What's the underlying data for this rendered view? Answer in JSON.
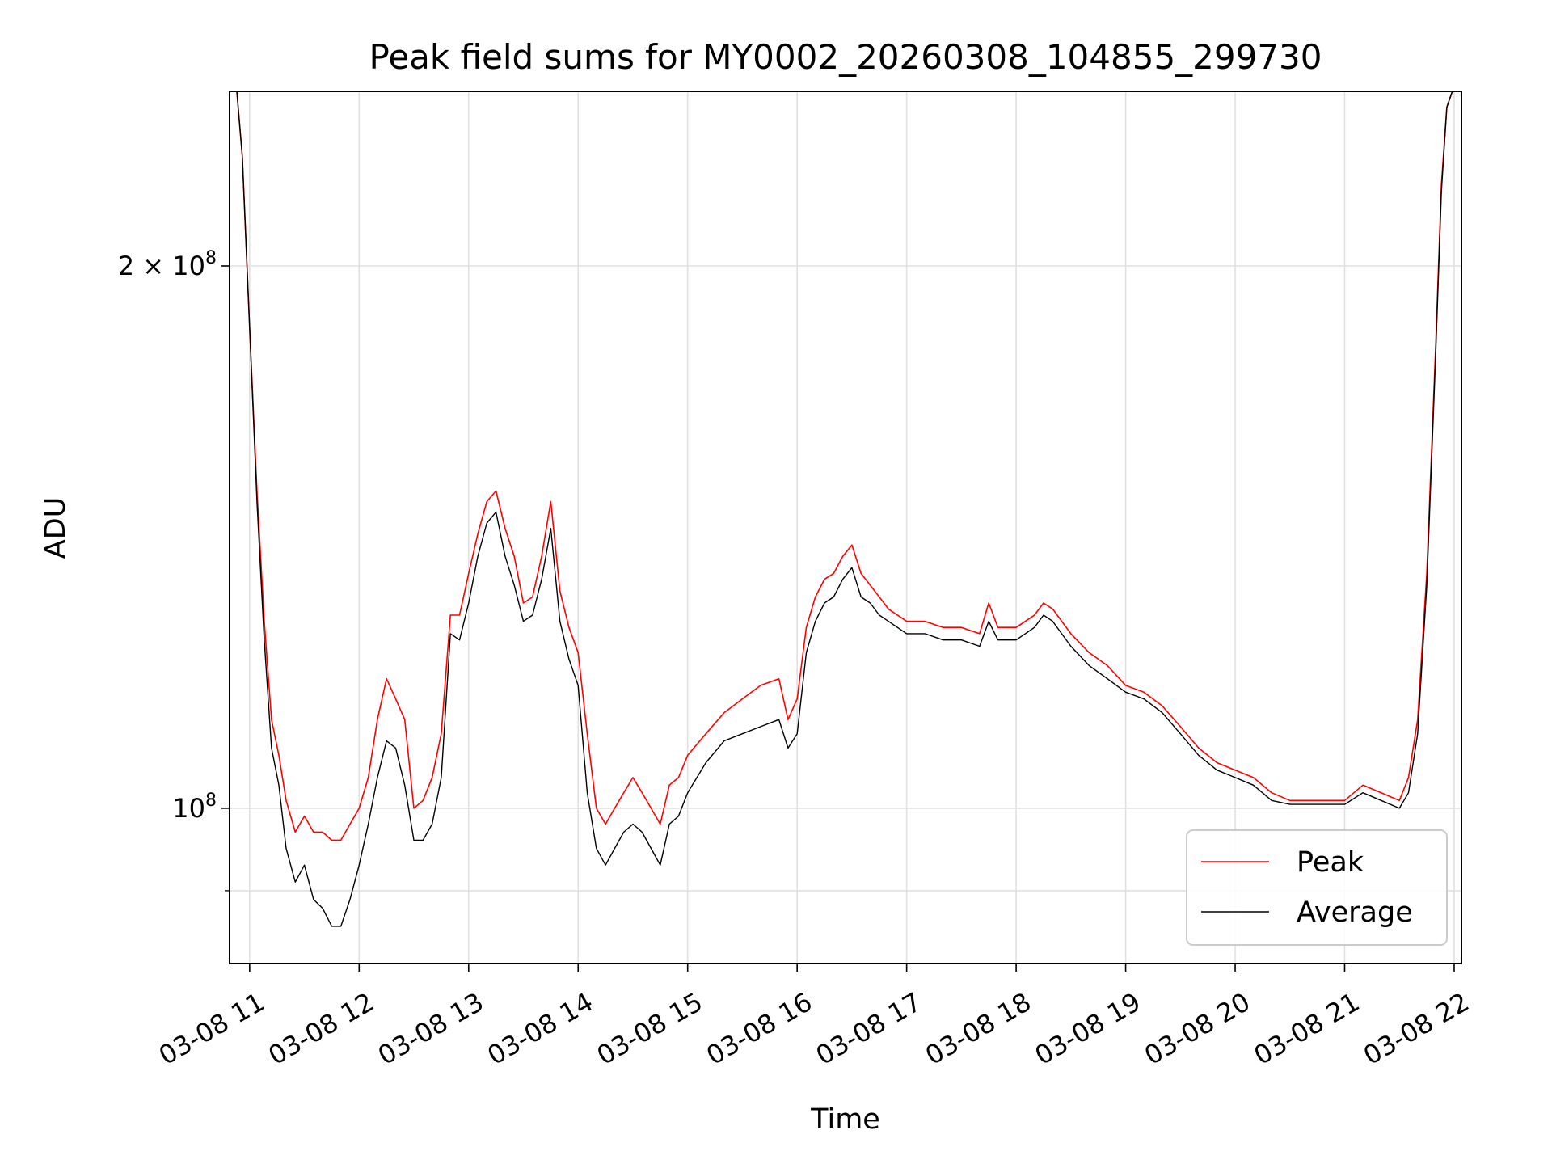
{
  "chart_data": {
    "type": "line",
    "title": "Peak field sums for MY0002_20260308_104855_299730",
    "xlabel": "Time",
    "ylabel": "ADU",
    "yscale": "log",
    "ylim": [
      82000000,
      250000000
    ],
    "xlim": [
      "2026-03-08 10:49",
      "2026-03-08 22:04"
    ],
    "grid": true,
    "legend_position": "lower-right",
    "x_tick_labels": [
      "03-08 11",
      "03-08 12",
      "03-08 13",
      "03-08 14",
      "03-08 15",
      "03-08 16",
      "03-08 17",
      "03-08 18",
      "03-08 19",
      "03-08 20",
      "03-08 21",
      "03-08 22"
    ],
    "x_tick_values": [
      "2026-03-08 11:00",
      "2026-03-08 12:00",
      "2026-03-08 13:00",
      "2026-03-08 14:00",
      "2026-03-08 15:00",
      "2026-03-08 16:00",
      "2026-03-08 17:00",
      "2026-03-08 18:00",
      "2026-03-08 19:00",
      "2026-03-08 20:00",
      "2026-03-08 21:00",
      "2026-03-08 22:00"
    ],
    "y_major_ticks": [
      {
        "value": 100000000,
        "base": "10",
        "exp": "8",
        "mantissa": ""
      },
      {
        "value": 200000000,
        "base": "10",
        "exp": "8",
        "mantissa": "2 × "
      }
    ],
    "y_minor_ticks": [
      90000000
    ],
    "colors": {
      "peak": "#ff0000",
      "average": "#000000"
    },
    "series": [
      {
        "name": "Peak",
        "x": [
          "2026-03-08 10:49",
          "2026-03-08 10:53",
          "2026-03-08 10:56",
          "2026-03-08 11:00",
          "2026-03-08 11:04",
          "2026-03-08 11:08",
          "2026-03-08 11:12",
          "2026-03-08 11:16",
          "2026-03-08 11:20",
          "2026-03-08 11:25",
          "2026-03-08 11:30",
          "2026-03-08 11:35",
          "2026-03-08 11:40",
          "2026-03-08 11:45",
          "2026-03-08 11:50",
          "2026-03-08 11:55",
          "2026-03-08 12:00",
          "2026-03-08 12:05",
          "2026-03-08 12:10",
          "2026-03-08 12:15",
          "2026-03-08 12:20",
          "2026-03-08 12:25",
          "2026-03-08 12:30",
          "2026-03-08 12:35",
          "2026-03-08 12:40",
          "2026-03-08 12:45",
          "2026-03-08 12:50",
          "2026-03-08 12:55",
          "2026-03-08 13:00",
          "2026-03-08 13:05",
          "2026-03-08 13:10",
          "2026-03-08 13:15",
          "2026-03-08 13:20",
          "2026-03-08 13:25",
          "2026-03-08 13:30",
          "2026-03-08 13:35",
          "2026-03-08 13:40",
          "2026-03-08 13:45",
          "2026-03-08 13:50",
          "2026-03-08 13:55",
          "2026-03-08 14:00",
          "2026-03-08 14:05",
          "2026-03-08 14:10",
          "2026-03-08 14:15",
          "2026-03-08 14:20",
          "2026-03-08 14:25",
          "2026-03-08 14:30",
          "2026-03-08 14:35",
          "2026-03-08 14:40",
          "2026-03-08 14:45",
          "2026-03-08 14:50",
          "2026-03-08 14:55",
          "2026-03-08 15:00",
          "2026-03-08 15:10",
          "2026-03-08 15:20",
          "2026-03-08 15:30",
          "2026-03-08 15:40",
          "2026-03-08 15:50",
          "2026-03-08 15:55",
          "2026-03-08 16:00",
          "2026-03-08 16:05",
          "2026-03-08 16:10",
          "2026-03-08 16:15",
          "2026-03-08 16:20",
          "2026-03-08 16:25",
          "2026-03-08 16:30",
          "2026-03-08 16:35",
          "2026-03-08 16:40",
          "2026-03-08 16:45",
          "2026-03-08 16:50",
          "2026-03-08 17:00",
          "2026-03-08 17:10",
          "2026-03-08 17:20",
          "2026-03-08 17:30",
          "2026-03-08 17:40",
          "2026-03-08 17:45",
          "2026-03-08 17:50",
          "2026-03-08 18:00",
          "2026-03-08 18:10",
          "2026-03-08 18:15",
          "2026-03-08 18:20",
          "2026-03-08 18:30",
          "2026-03-08 18:40",
          "2026-03-08 18:50",
          "2026-03-08 19:00",
          "2026-03-08 19:10",
          "2026-03-08 19:20",
          "2026-03-08 19:30",
          "2026-03-08 19:40",
          "2026-03-08 19:50",
          "2026-03-08 20:00",
          "2026-03-08 20:10",
          "2026-03-08 20:20",
          "2026-03-08 20:30",
          "2026-03-08 20:40",
          "2026-03-08 20:50",
          "2026-03-08 21:00",
          "2026-03-08 21:10",
          "2026-03-08 21:20",
          "2026-03-08 21:30",
          "2026-03-08 21:35",
          "2026-03-08 21:40",
          "2026-03-08 21:45",
          "2026-03-08 21:50",
          "2026-03-08 21:53",
          "2026-03-08 21:56",
          "2026-03-08 21:59"
        ],
        "y": [
          250000000,
          250000000,
          230000000,
          185000000,
          150000000,
          127000000,
          112000000,
          107000000,
          101000000,
          97000000,
          99000000,
          97000000,
          97000000,
          96000000,
          96000000,
          98000000,
          100000000,
          104000000,
          112000000,
          118000000,
          115000000,
          112000000,
          100000000,
          101000000,
          104000000,
          110000000,
          128000000,
          128000000,
          135000000,
          142000000,
          148000000,
          150000000,
          143000000,
          138000000,
          130000000,
          131000000,
          138000000,
          148000000,
          132000000,
          126000000,
          122000000,
          110000000,
          100000000,
          98000000,
          100000000,
          102000000,
          104000000,
          102000000,
          100000000,
          98000000,
          103000000,
          104000000,
          107000000,
          110000000,
          113000000,
          115000000,
          117000000,
          118000000,
          112000000,
          115000000,
          126000000,
          131000000,
          134000000,
          135000000,
          138000000,
          140000000,
          135000000,
          133000000,
          131000000,
          129000000,
          127000000,
          127000000,
          126000000,
          126000000,
          125000000,
          130000000,
          126000000,
          126000000,
          128000000,
          130000000,
          129000000,
          125000000,
          122000000,
          120000000,
          117000000,
          116000000,
          114000000,
          111000000,
          108000000,
          106000000,
          105000000,
          104000000,
          102000000,
          101000000,
          101000000,
          101000000,
          101000000,
          103000000,
          102000000,
          101000000,
          104000000,
          112000000,
          135000000,
          182000000,
          222000000,
          245000000,
          250000000
        ]
      },
      {
        "name": "Average",
        "x": [
          "2026-03-08 10:49",
          "2026-03-08 10:53",
          "2026-03-08 10:56",
          "2026-03-08 11:00",
          "2026-03-08 11:04",
          "2026-03-08 11:08",
          "2026-03-08 11:12",
          "2026-03-08 11:16",
          "2026-03-08 11:20",
          "2026-03-08 11:25",
          "2026-03-08 11:30",
          "2026-03-08 11:35",
          "2026-03-08 11:40",
          "2026-03-08 11:45",
          "2026-03-08 11:50",
          "2026-03-08 11:55",
          "2026-03-08 12:00",
          "2026-03-08 12:05",
          "2026-03-08 12:10",
          "2026-03-08 12:15",
          "2026-03-08 12:20",
          "2026-03-08 12:25",
          "2026-03-08 12:30",
          "2026-03-08 12:35",
          "2026-03-08 12:40",
          "2026-03-08 12:45",
          "2026-03-08 12:50",
          "2026-03-08 12:55",
          "2026-03-08 13:00",
          "2026-03-08 13:05",
          "2026-03-08 13:10",
          "2026-03-08 13:15",
          "2026-03-08 13:20",
          "2026-03-08 13:25",
          "2026-03-08 13:30",
          "2026-03-08 13:35",
          "2026-03-08 13:40",
          "2026-03-08 13:45",
          "2026-03-08 13:50",
          "2026-03-08 13:55",
          "2026-03-08 14:00",
          "2026-03-08 14:05",
          "2026-03-08 14:10",
          "2026-03-08 14:15",
          "2026-03-08 14:20",
          "2026-03-08 14:25",
          "2026-03-08 14:30",
          "2026-03-08 14:35",
          "2026-03-08 14:40",
          "2026-03-08 14:45",
          "2026-03-08 14:50",
          "2026-03-08 14:55",
          "2026-03-08 15:00",
          "2026-03-08 15:10",
          "2026-03-08 15:20",
          "2026-03-08 15:30",
          "2026-03-08 15:40",
          "2026-03-08 15:50",
          "2026-03-08 15:55",
          "2026-03-08 16:00",
          "2026-03-08 16:05",
          "2026-03-08 16:10",
          "2026-03-08 16:15",
          "2026-03-08 16:20",
          "2026-03-08 16:25",
          "2026-03-08 16:30",
          "2026-03-08 16:35",
          "2026-03-08 16:40",
          "2026-03-08 16:45",
          "2026-03-08 16:50",
          "2026-03-08 17:00",
          "2026-03-08 17:10",
          "2026-03-08 17:20",
          "2026-03-08 17:30",
          "2026-03-08 17:40",
          "2026-03-08 17:45",
          "2026-03-08 17:50",
          "2026-03-08 18:00",
          "2026-03-08 18:10",
          "2026-03-08 18:15",
          "2026-03-08 18:20",
          "2026-03-08 18:30",
          "2026-03-08 18:40",
          "2026-03-08 18:50",
          "2026-03-08 19:00",
          "2026-03-08 19:10",
          "2026-03-08 19:20",
          "2026-03-08 19:30",
          "2026-03-08 19:40",
          "2026-03-08 19:50",
          "2026-03-08 20:00",
          "2026-03-08 20:10",
          "2026-03-08 20:20",
          "2026-03-08 20:30",
          "2026-03-08 20:40",
          "2026-03-08 20:50",
          "2026-03-08 21:00",
          "2026-03-08 21:10",
          "2026-03-08 21:20",
          "2026-03-08 21:30",
          "2026-03-08 21:35",
          "2026-03-08 21:40",
          "2026-03-08 21:45",
          "2026-03-08 21:50",
          "2026-03-08 21:53",
          "2026-03-08 21:56",
          "2026-03-08 21:59"
        ],
        "y": [
          250000000,
          250000000,
          230000000,
          185000000,
          148000000,
          124000000,
          108000000,
          103000000,
          95000000,
          91000000,
          93000000,
          89000000,
          88000000,
          86000000,
          86000000,
          89000000,
          93000000,
          98000000,
          104000000,
          109000000,
          108000000,
          103000000,
          96000000,
          96000000,
          98000000,
          104000000,
          125000000,
          124000000,
          130000000,
          138000000,
          144000000,
          146000000,
          138000000,
          133000000,
          127000000,
          128000000,
          134000000,
          143000000,
          127000000,
          121000000,
          117000000,
          102000000,
          95000000,
          93000000,
          95000000,
          97000000,
          98000000,
          97000000,
          95000000,
          93000000,
          98000000,
          99000000,
          102000000,
          106000000,
          109000000,
          110000000,
          111000000,
          112000000,
          108000000,
          110000000,
          122000000,
          127000000,
          130000000,
          131000000,
          134000000,
          136000000,
          131000000,
          130000000,
          128000000,
          127000000,
          125000000,
          125000000,
          124000000,
          124000000,
          123000000,
          127000000,
          124000000,
          124000000,
          126000000,
          128000000,
          127000000,
          123000000,
          120000000,
          118000000,
          116000000,
          115000000,
          113000000,
          110000000,
          107000000,
          105000000,
          104000000,
          103000000,
          101000000,
          100500000,
          100500000,
          100500000,
          100500000,
          102000000,
          101000000,
          100000000,
          102000000,
          110000000,
          133000000,
          180000000,
          220000000,
          245000000,
          250000000
        ]
      }
    ]
  }
}
